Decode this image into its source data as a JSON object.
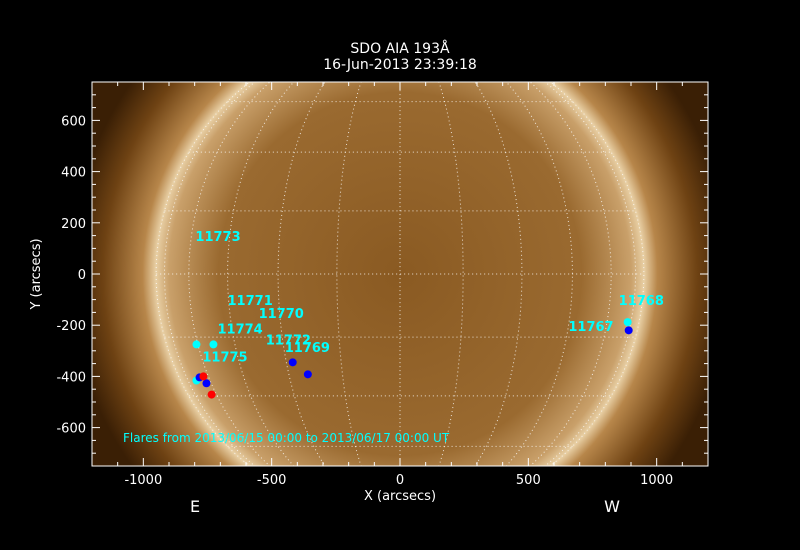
{
  "chart_data": {
    "type": "scatter",
    "title": "SDO AIA 193Å",
    "subtitle": "16-Jun-2013 23:39:18",
    "xlabel": "X (arcsecs)",
    "ylabel": "Y (arcsecs)",
    "xlim": [
      -1200,
      1200
    ],
    "ylim": [
      -750,
      750
    ],
    "xticks": [
      -1000,
      -500,
      0,
      500,
      1000
    ],
    "yticks": [
      -600,
      -400,
      -200,
      0,
      200,
      400,
      600
    ],
    "background": "solar disk image (AIA 193Å, brown colormap) with heliographic grid",
    "solar_radius_arcsec": 950,
    "grid": true,
    "east_label": "E",
    "west_label": "W",
    "annotation": "Flares from 2013/06/15 00:00 to 2013/06/17 00:00 UT",
    "label_color": "#00ffff",
    "active_regions": [
      {
        "label": "11773",
        "x": -797,
        "y": 149
      },
      {
        "label": "11771",
        "x": -672,
        "y": -102
      },
      {
        "label": "11770",
        "x": -551,
        "y": -153
      },
      {
        "label": "11774",
        "x": -711,
        "y": -212
      },
      {
        "label": "11772",
        "x": -523,
        "y": -255
      },
      {
        "label": "11769",
        "x": -449,
        "y": -286
      },
      {
        "label": "11775",
        "x": -770,
        "y": -322
      },
      {
        "label": "11768",
        "x": 852,
        "y": -102
      },
      {
        "label": "11767",
        "x": 656,
        "y": -204
      }
    ],
    "flares": [
      {
        "color": "#00ffff",
        "x": -793,
        "y": -275
      },
      {
        "color": "#00ffff",
        "x": -727,
        "y": -275
      },
      {
        "color": "#00ffff",
        "x": 887,
        "y": -188
      },
      {
        "color": "#00ffff",
        "x": -793,
        "y": -416
      },
      {
        "color": "#0000ff",
        "x": -418,
        "y": -345
      },
      {
        "color": "#0000ff",
        "x": -359,
        "y": -392
      },
      {
        "color": "#0000ff",
        "x": -781,
        "y": -404
      },
      {
        "color": "#0000ff",
        "x": -754,
        "y": -427
      },
      {
        "color": "#0000ff",
        "x": 891,
        "y": -220
      },
      {
        "color": "#ff0000",
        "x": -766,
        "y": -400
      },
      {
        "color": "#ff0000",
        "x": -734,
        "y": -471
      }
    ]
  }
}
